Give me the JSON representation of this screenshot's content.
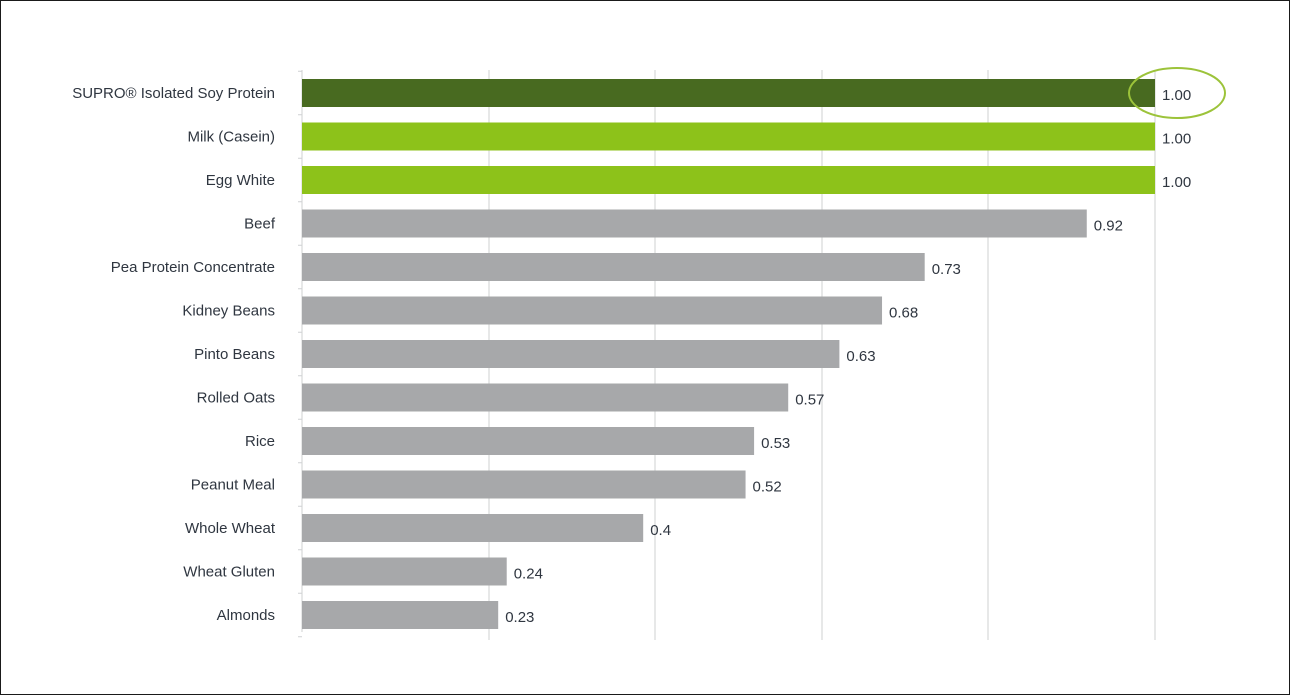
{
  "colors": {
    "highlight_dark": "#486a20",
    "highlight_light": "#8dc21a",
    "default": "#a7a8aa",
    "grid": "#cfd1d2",
    "text": "#2f3640",
    "callout_ring": "#9cc33a"
  },
  "chart_data": {
    "type": "bar",
    "orientation": "horizontal",
    "title": "",
    "xlabel": "",
    "ylabel": "",
    "xlim": [
      0,
      1.0
    ],
    "grid": true,
    "legend": "none",
    "categories": [
      "SUPRO® Isolated Soy Protein",
      "Milk (Casein)",
      "Egg White",
      "Beef",
      "Pea Protein Concentrate",
      "Kidney Beans",
      "Pinto Beans",
      "Rolled Oats",
      "Rice",
      "Peanut Meal",
      "Whole Wheat",
      "Wheat Gluten",
      "Almonds"
    ],
    "values": [
      1.0,
      1.0,
      1.0,
      0.92,
      0.73,
      0.68,
      0.63,
      0.57,
      0.53,
      0.52,
      0.4,
      0.24,
      0.23
    ],
    "value_labels": [
      "1.00",
      "1.00",
      "1.00",
      "0.92",
      "0.73",
      "0.68",
      "0.63",
      "0.57",
      "0.53",
      "0.52",
      "0.4",
      "0.24",
      "0.23"
    ],
    "bar_colors": [
      "highlight_dark",
      "highlight_light",
      "highlight_light",
      "default",
      "default",
      "default",
      "default",
      "default",
      "default",
      "default",
      "default",
      "default",
      "default"
    ],
    "callout": {
      "category": "SUPRO® Isolated Soy Protein",
      "style": "ellipse-around-value-label"
    }
  }
}
